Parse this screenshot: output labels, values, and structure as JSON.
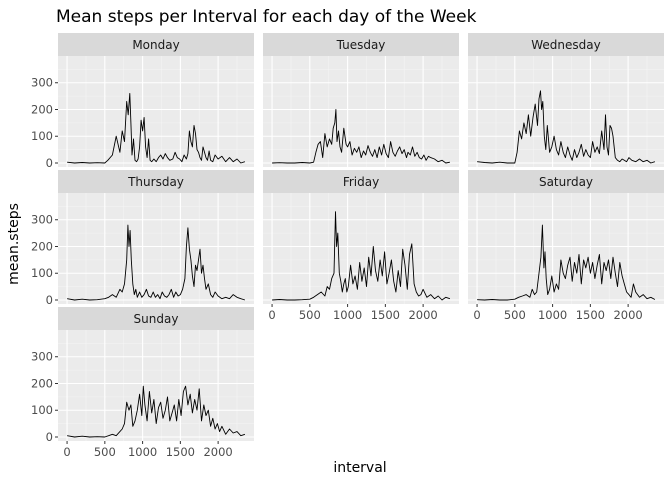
{
  "chart_data": {
    "type": "line",
    "title": "Mean steps per Interval for each day of the Week",
    "xlabel": "interval",
    "ylabel": "mean.steps",
    "xlim": [
      -120,
      2475
    ],
    "ylim": [
      -15,
      400
    ],
    "x_ticks": [
      0,
      500,
      1000,
      1500,
      2000
    ],
    "x_tick_labels": [
      "0",
      "500",
      "1000",
      "1500",
      "2000"
    ],
    "y_ticks": [
      0,
      100,
      200,
      300
    ],
    "y_tick_labels": [
      "0",
      "100",
      "200",
      "300"
    ],
    "grid": true,
    "facet_layout": {
      "ncol": 3,
      "nrow": 3
    },
    "panels": [
      {
        "name": "Monday",
        "x": [
          0,
          100,
          200,
          300,
          400,
          500,
          540,
          600,
          650,
          700,
          730,
          760,
          790,
          810,
          830,
          845,
          860,
          880,
          900,
          920,
          940,
          960,
          980,
          1000,
          1020,
          1040,
          1060,
          1080,
          1100,
          1120,
          1150,
          1180,
          1210,
          1240,
          1270,
          1300,
          1330,
          1360,
          1400,
          1430,
          1460,
          1490,
          1520,
          1550,
          1580,
          1600,
          1620,
          1640,
          1660,
          1680,
          1700,
          1720,
          1740,
          1760,
          1780,
          1800,
          1820,
          1840,
          1860,
          1880,
          1900,
          1930,
          1960,
          2000,
          2050,
          2100,
          2150,
          2200,
          2250,
          2300,
          2355
        ],
        "y": [
          3,
          0,
          2,
          0,
          1,
          0,
          10,
          30,
          100,
          40,
          120,
          80,
          230,
          180,
          260,
          150,
          30,
          90,
          10,
          5,
          15,
          60,
          160,
          120,
          170,
          60,
          20,
          90,
          10,
          5,
          15,
          5,
          20,
          30,
          15,
          35,
          20,
          10,
          15,
          40,
          20,
          15,
          5,
          30,
          15,
          35,
          120,
          80,
          60,
          140,
          110,
          50,
          40,
          20,
          10,
          60,
          40,
          20,
          10,
          45,
          10,
          5,
          30,
          15,
          25,
          5,
          20,
          5,
          15,
          0,
          5
        ]
      },
      {
        "name": "Tuesday",
        "x": [
          0,
          100,
          200,
          300,
          400,
          500,
          550,
          580,
          610,
          640,
          670,
          700,
          730,
          760,
          790,
          810,
          830,
          845,
          860,
          880,
          900,
          920,
          950,
          980,
          1000,
          1030,
          1060,
          1090,
          1120,
          1150,
          1180,
          1210,
          1240,
          1270,
          1300,
          1330,
          1360,
          1390,
          1420,
          1450,
          1480,
          1510,
          1540,
          1570,
          1600,
          1630,
          1660,
          1690,
          1720,
          1750,
          1780,
          1800,
          1830,
          1860,
          1890,
          1920,
          1950,
          1980,
          2010,
          2040,
          2070,
          2100,
          2150,
          2200,
          2250,
          2300,
          2355
        ],
        "y": [
          0,
          1,
          0,
          0,
          2,
          0,
          3,
          40,
          70,
          80,
          20,
          110,
          60,
          90,
          70,
          130,
          150,
          200,
          80,
          120,
          60,
          40,
          130,
          70,
          60,
          80,
          30,
          55,
          40,
          60,
          20,
          45,
          30,
          65,
          40,
          25,
          50,
          20,
          60,
          30,
          70,
          35,
          20,
          80,
          40,
          25,
          45,
          60,
          35,
          50,
          20,
          40,
          30,
          60,
          25,
          40,
          20,
          15,
          30,
          10,
          25,
          20,
          15,
          5,
          10,
          0,
          3
        ]
      },
      {
        "name": "Wednesday",
        "x": [
          0,
          100,
          200,
          300,
          400,
          500,
          530,
          560,
          590,
          620,
          650,
          680,
          710,
          740,
          770,
          800,
          820,
          840,
          855,
          870,
          890,
          910,
          930,
          960,
          990,
          1020,
          1050,
          1080,
          1110,
          1140,
          1170,
          1200,
          1230,
          1260,
          1290,
          1320,
          1350,
          1380,
          1410,
          1440,
          1470,
          1500,
          1530,
          1560,
          1590,
          1620,
          1650,
          1680,
          1700,
          1720,
          1740,
          1760,
          1780,
          1800,
          1830,
          1860,
          1890,
          1920,
          1950,
          1980,
          2010,
          2050,
          2100,
          2150,
          2200,
          2250,
          2300,
          2355
        ],
        "y": [
          5,
          2,
          0,
          3,
          0,
          0,
          40,
          120,
          90,
          150,
          110,
          180,
          100,
          170,
          220,
          140,
          240,
          270,
          200,
          230,
          100,
          50,
          140,
          40,
          60,
          100,
          50,
          30,
          80,
          40,
          20,
          60,
          30,
          10,
          50,
          20,
          40,
          70,
          25,
          50,
          30,
          20,
          80,
          40,
          60,
          35,
          120,
          50,
          180,
          60,
          30,
          140,
          130,
          100,
          20,
          10,
          5,
          15,
          10,
          5,
          20,
          10,
          5,
          15,
          5,
          10,
          0,
          5
        ]
      },
      {
        "name": "Thursday",
        "x": [
          0,
          100,
          200,
          300,
          400,
          500,
          550,
          600,
          650,
          700,
          730,
          760,
          790,
          805,
          820,
          835,
          850,
          870,
          890,
          910,
          930,
          960,
          990,
          1020,
          1050,
          1080,
          1110,
          1140,
          1170,
          1200,
          1230,
          1260,
          1290,
          1320,
          1350,
          1380,
          1410,
          1440,
          1470,
          1500,
          1530,
          1560,
          1580,
          1600,
          1620,
          1640,
          1660,
          1680,
          1700,
          1720,
          1740,
          1760,
          1780,
          1800,
          1820,
          1840,
          1870,
          1900,
          1930,
          1960,
          2000,
          2050,
          2100,
          2150,
          2200,
          2250,
          2300,
          2355
        ],
        "y": [
          5,
          0,
          3,
          0,
          1,
          5,
          10,
          20,
          10,
          40,
          30,
          60,
          150,
          280,
          200,
          260,
          150,
          60,
          20,
          40,
          10,
          30,
          10,
          20,
          40,
          15,
          10,
          30,
          10,
          20,
          5,
          30,
          15,
          10,
          20,
          40,
          10,
          30,
          15,
          20,
          40,
          80,
          200,
          270,
          190,
          150,
          90,
          50,
          130,
          110,
          150,
          190,
          100,
          130,
          80,
          40,
          60,
          20,
          10,
          30,
          15,
          5,
          10,
          5,
          20,
          10,
          5,
          0
        ]
      },
      {
        "name": "Friday",
        "x": [
          0,
          100,
          200,
          300,
          400,
          500,
          550,
          600,
          650,
          700,
          730,
          760,
          790,
          820,
          840,
          855,
          870,
          890,
          910,
          930,
          950,
          970,
          990,
          1010,
          1040,
          1070,
          1100,
          1130,
          1160,
          1190,
          1220,
          1250,
          1280,
          1310,
          1340,
          1370,
          1400,
          1430,
          1460,
          1490,
          1520,
          1550,
          1580,
          1610,
          1640,
          1670,
          1700,
          1730,
          1760,
          1790,
          1820,
          1850,
          1880,
          1910,
          1940,
          1970,
          2000,
          2050,
          2100,
          2150,
          2200,
          2250,
          2300,
          2355
        ],
        "y": [
          0,
          2,
          0,
          0,
          1,
          3,
          10,
          20,
          30,
          15,
          50,
          40,
          80,
          100,
          330,
          200,
          250,
          100,
          70,
          30,
          60,
          80,
          30,
          50,
          130,
          60,
          90,
          40,
          140,
          70,
          120,
          50,
          160,
          90,
          200,
          110,
          70,
          150,
          90,
          180,
          60,
          100,
          150,
          70,
          30,
          110,
          50,
          190,
          130,
          40,
          170,
          210,
          60,
          30,
          15,
          20,
          40,
          10,
          20,
          5,
          15,
          0,
          10,
          5
        ]
      },
      {
        "name": "Saturday",
        "x": [
          0,
          100,
          200,
          300,
          400,
          500,
          550,
          600,
          650,
          700,
          730,
          760,
          790,
          820,
          845,
          865,
          885,
          900,
          915,
          935,
          960,
          990,
          1020,
          1050,
          1080,
          1110,
          1140,
          1170,
          1200,
          1230,
          1260,
          1290,
          1320,
          1350,
          1380,
          1410,
          1440,
          1470,
          1500,
          1530,
          1560,
          1590,
          1620,
          1650,
          1680,
          1710,
          1740,
          1770,
          1800,
          1830,
          1860,
          1890,
          1920,
          1950,
          1980,
          2010,
          2040,
          2070,
          2100,
          2150,
          2200,
          2250,
          2300,
          2355
        ],
        "y": [
          1,
          0,
          2,
          0,
          0,
          3,
          10,
          15,
          20,
          10,
          40,
          20,
          30,
          100,
          160,
          280,
          120,
          180,
          80,
          20,
          40,
          90,
          30,
          60,
          40,
          150,
          100,
          80,
          130,
          160,
          70,
          140,
          100,
          170,
          60,
          150,
          120,
          160,
          100,
          140,
          80,
          130,
          170,
          60,
          140,
          110,
          150,
          80,
          160,
          100,
          50,
          140,
          90,
          60,
          30,
          20,
          10,
          60,
          30,
          10,
          20,
          5,
          10,
          2
        ]
      },
      {
        "name": "Sunday",
        "x": [
          0,
          100,
          200,
          300,
          400,
          500,
          550,
          600,
          650,
          700,
          730,
          760,
          790,
          820,
          845,
          870,
          900,
          930,
          960,
          990,
          1010,
          1030,
          1060,
          1090,
          1120,
          1150,
          1180,
          1210,
          1240,
          1270,
          1300,
          1330,
          1360,
          1390,
          1420,
          1450,
          1480,
          1510,
          1540,
          1570,
          1600,
          1630,
          1660,
          1690,
          1720,
          1750,
          1780,
          1810,
          1840,
          1870,
          1900,
          1930,
          1960,
          1990,
          2020,
          2050,
          2100,
          2150,
          2200,
          2250,
          2300,
          2355
        ],
        "y": [
          5,
          0,
          3,
          0,
          1,
          0,
          5,
          10,
          5,
          20,
          30,
          50,
          130,
          100,
          120,
          40,
          60,
          100,
          160,
          80,
          190,
          120,
          60,
          170,
          90,
          140,
          50,
          110,
          130,
          70,
          100,
          150,
          60,
          90,
          120,
          60,
          140,
          80,
          170,
          190,
          120,
          160,
          90,
          140,
          100,
          180,
          60,
          120,
          80,
          100,
          40,
          70,
          30,
          50,
          20,
          40,
          10,
          30,
          15,
          20,
          5,
          10
        ]
      }
    ]
  }
}
